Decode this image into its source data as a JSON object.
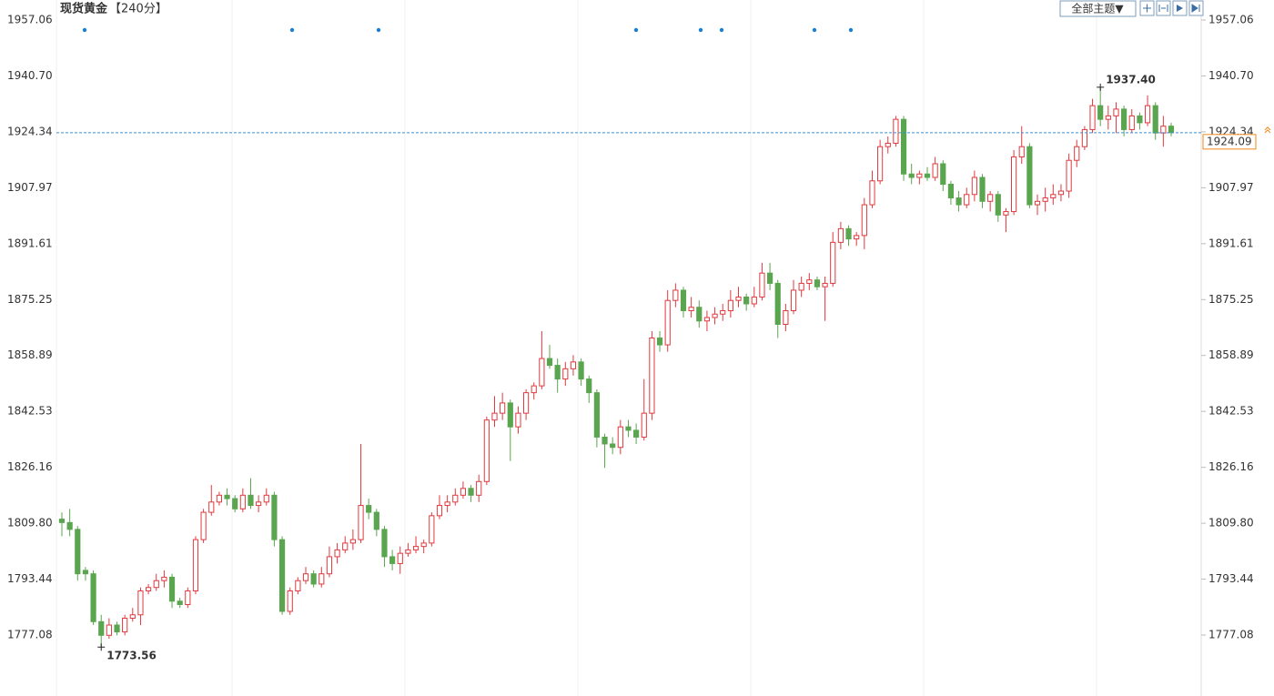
{
  "chart_data": {
    "type": "candlestick",
    "title": "现货黄金",
    "subtitle": "【240分】",
    "theme_button": "全部主题▼",
    "up_color": "#e0393e",
    "down_color": "#5aa54f",
    "ylim": [
      1759.24,
      1962.92
    ],
    "yticks": [
      1777.08,
      1793.44,
      {
        "value": 1809.8,
        "label": "1809.80"
      },
      1826.16,
      1842.53,
      1858.89,
      1875.25,
      1891.61,
      1907.97,
      1924.34,
      {
        "value": 1940.7,
        "label": "1940.70"
      },
      1957.06
    ],
    "high_annotation": {
      "value": 1937.4,
      "label": "1937.40"
    },
    "low_annotation": 1773.56,
    "current_price": 1924.09,
    "candles": [
      [
        1811,
        1813,
        1806,
        1810
      ],
      [
        1810,
        1814,
        1806,
        1808
      ],
      [
        1808,
        1809,
        1793,
        1795
      ],
      [
        1796,
        1797,
        1793,
        1795
      ],
      [
        1795,
        1796,
        1780,
        1781
      ],
      [
        1781,
        1783,
        1773.56,
        1777
      ],
      [
        1777,
        1782,
        1776,
        1780
      ],
      [
        1780,
        1781,
        1777,
        1778
      ],
      [
        1778,
        1783,
        1777,
        1782
      ],
      [
        1782,
        1785,
        1781,
        1783
      ],
      [
        1783,
        1791,
        1780,
        1790
      ],
      [
        1790,
        1792,
        1789,
        1791
      ],
      [
        1791,
        1795,
        1790,
        1793
      ],
      [
        1793,
        1796,
        1791,
        1794
      ],
      [
        1794,
        1795,
        1785,
        1787
      ],
      [
        1787,
        1788,
        1785,
        1786
      ],
      [
        1786,
        1791,
        1785,
        1790
      ],
      [
        1790,
        1806,
        1789,
        1805
      ],
      [
        1805,
        1814,
        1804,
        1813
      ],
      [
        1813,
        1821,
        1812,
        1816
      ],
      [
        1816,
        1819,
        1815,
        1818
      ],
      [
        1818,
        1820,
        1815,
        1817
      ],
      [
        1817,
        1818,
        1813,
        1814
      ],
      [
        1814,
        1820,
        1813,
        1818
      ],
      [
        1818,
        1823,
        1814,
        1815
      ],
      [
        1815,
        1818,
        1813,
        1816
      ],
      [
        1816,
        1820,
        1815,
        1818
      ],
      [
        1818,
        1819,
        1803,
        1805
      ],
      [
        1805,
        1806,
        1783,
        1784
      ],
      [
        1784,
        1791,
        1783,
        1790
      ],
      [
        1790,
        1794,
        1789,
        1793
      ],
      [
        1793,
        1797,
        1792,
        1795
      ],
      [
        1795,
        1796,
        1791,
        1792
      ],
      [
        1792,
        1797,
        1791,
        1795
      ],
      [
        1795,
        1803,
        1794,
        1800
      ],
      [
        1800,
        1804,
        1798,
        1802
      ],
      [
        1802,
        1806,
        1801,
        1804
      ],
      [
        1804,
        1808,
        1802,
        1805
      ],
      [
        1805,
        1833,
        1804,
        1815
      ],
      [
        1815,
        1817,
        1811,
        1813
      ],
      [
        1813,
        1814,
        1806,
        1808
      ],
      [
        1808,
        1809,
        1797,
        1800
      ],
      [
        1800,
        1802,
        1796,
        1798
      ],
      [
        1798,
        1803,
        1795,
        1801
      ],
      [
        1801,
        1804,
        1800,
        1802
      ],
      [
        1802,
        1806,
        1801,
        1803
      ],
      [
        1803,
        1805,
        1801,
        1804
      ],
      [
        1804,
        1813,
        1803,
        1812
      ],
      [
        1812,
        1818,
        1811,
        1815
      ],
      [
        1815,
        1818,
        1813,
        1816
      ],
      [
        1816,
        1820,
        1815,
        1818
      ],
      [
        1818,
        1822,
        1817,
        1820
      ],
      [
        1820,
        1821,
        1816,
        1818
      ],
      [
        1818,
        1824,
        1816,
        1822
      ],
      [
        1822,
        1841,
        1821,
        1840
      ],
      [
        1840,
        1847,
        1838,
        1842
      ],
      [
        1842,
        1848,
        1840,
        1845
      ],
      [
        1845,
        1846,
        1828,
        1838
      ],
      [
        1838,
        1844,
        1836,
        1842
      ],
      [
        1842,
        1849,
        1840,
        1848
      ],
      [
        1848,
        1851,
        1846,
        1850
      ],
      [
        1850,
        1866,
        1849,
        1858
      ],
      [
        1858,
        1862,
        1855,
        1856
      ],
      [
        1856,
        1858,
        1848,
        1852
      ],
      [
        1852,
        1857,
        1850,
        1855
      ],
      [
        1855,
        1859,
        1853,
        1857
      ],
      [
        1857,
        1858,
        1850,
        1852
      ],
      [
        1852,
        1853,
        1845,
        1848
      ],
      [
        1848,
        1849,
        1832,
        1835
      ],
      [
        1835,
        1836,
        1826,
        1833
      ],
      [
        1833,
        1835,
        1830,
        1832
      ],
      [
        1832,
        1840,
        1830,
        1838
      ],
      [
        1838,
        1840,
        1835,
        1837
      ],
      [
        1837,
        1839,
        1833,
        1835
      ],
      [
        1835,
        1852,
        1834,
        1842
      ],
      [
        1842,
        1866,
        1840,
        1864
      ],
      [
        1864,
        1866,
        1860,
        1862
      ],
      [
        1862,
        1878,
        1860,
        1875
      ],
      [
        1875,
        1880,
        1873,
        1878
      ],
      [
        1878,
        1879,
        1870,
        1872
      ],
      [
        1872,
        1876,
        1870,
        1873
      ],
      [
        1873,
        1875,
        1867,
        1869
      ],
      [
        1869,
        1872,
        1866,
        1870
      ],
      [
        1870,
        1873,
        1868,
        1871
      ],
      [
        1871,
        1874,
        1869,
        1872
      ],
      [
        1872,
        1878,
        1870,
        1875
      ],
      [
        1875,
        1879,
        1873,
        1876
      ],
      [
        1876,
        1877,
        1872,
        1874
      ],
      [
        1874,
        1879,
        1873,
        1876
      ],
      [
        1876,
        1886,
        1875,
        1883
      ],
      [
        1883,
        1886,
        1878,
        1880
      ],
      [
        1880,
        1881,
        1864,
        1868
      ],
      [
        1868,
        1874,
        1866,
        1872
      ],
      [
        1872,
        1881,
        1871,
        1878
      ],
      [
        1878,
        1882,
        1876,
        1880
      ],
      [
        1880,
        1883,
        1878,
        1881
      ],
      [
        1881,
        1882,
        1878,
        1879
      ],
      [
        1879,
        1882,
        1869,
        1880
      ],
      [
        1880,
        1895,
        1879,
        1892
      ],
      [
        1892,
        1898,
        1890,
        1896
      ],
      [
        1896,
        1897,
        1891,
        1893
      ],
      [
        1893,
        1895,
        1891,
        1894
      ],
      [
        1894,
        1905,
        1890,
        1903
      ],
      [
        1903,
        1913,
        1902,
        1910
      ],
      [
        1910,
        1922,
        1909,
        1920
      ],
      [
        1920,
        1923,
        1918,
        1921
      ],
      [
        1921,
        1929,
        1920,
        1928
      ],
      [
        1928,
        1929,
        1910,
        1912
      ],
      [
        1912,
        1915,
        1909,
        1911
      ],
      [
        1911,
        1913,
        1909,
        1912
      ],
      [
        1912,
        1914,
        1910,
        1911
      ],
      [
        1911,
        1917,
        1910,
        1915
      ],
      [
        1915,
        1916,
        1907,
        1909
      ],
      [
        1909,
        1910,
        1903,
        1905
      ],
      [
        1905,
        1907,
        1901,
        1903
      ],
      [
        1903,
        1908,
        1902,
        1906
      ],
      [
        1906,
        1913,
        1904,
        1911
      ],
      [
        1911,
        1912,
        1902,
        1904
      ],
      [
        1904,
        1907,
        1901,
        1906
      ],
      [
        1906,
        1907,
        1898,
        1900
      ],
      [
        1900,
        1902,
        1895,
        1901
      ],
      [
        1901,
        1919,
        1900,
        1917
      ],
      [
        1917,
        1926,
        1915,
        1920
      ],
      [
        1920,
        1921,
        1902,
        1903
      ],
      [
        1903,
        1906,
        1900,
        1904
      ],
      [
        1904,
        1908,
        1901,
        1905
      ],
      [
        1905,
        1909,
        1903,
        1906
      ],
      [
        1906,
        1909,
        1904,
        1907
      ],
      [
        1907,
        1918,
        1905,
        1916
      ],
      [
        1916,
        1922,
        1914,
        1920
      ],
      [
        1920,
        1926,
        1919,
        1925
      ],
      [
        1925,
        1934,
        1924,
        1932
      ],
      [
        1932,
        1937.4,
        1926,
        1928
      ],
      [
        1928,
        1932,
        1925,
        1929
      ],
      [
        1929,
        1933,
        1924,
        1931
      ],
      [
        1931,
        1932,
        1923,
        1925
      ],
      [
        1925,
        1931,
        1924,
        1929
      ],
      [
        1929,
        1930,
        1925,
        1927
      ],
      [
        1927,
        1935,
        1926,
        1932
      ],
      [
        1932,
        1933,
        1922,
        1924
      ],
      [
        1924,
        1929,
        1920,
        1926
      ],
      [
        1926,
        1927,
        1923,
        1924.09
      ]
    ]
  }
}
